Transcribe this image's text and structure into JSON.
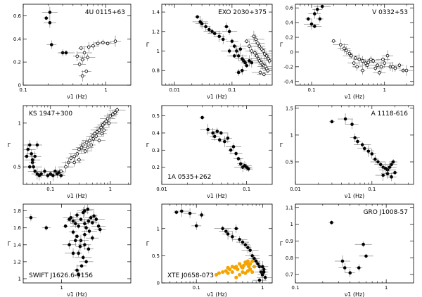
{
  "chart_data": [
    {
      "type": "scatter",
      "title": "4U 0115+63",
      "title_pos": "top-right",
      "xlabel": "ν1 (Hz)",
      "ylabel": "",
      "xscale": "log",
      "xlim": [
        0.1,
        2.0
      ],
      "ylim": [
        0,
        0.7
      ],
      "xticks": [
        0.1,
        1
      ],
      "xtick_labels": [
        "0.1",
        "1"
      ],
      "yticks": [
        0,
        0.2,
        0.4,
        0.6
      ],
      "ytick_labels": [
        "0",
        "0.2",
        "0.4",
        "0.6"
      ],
      "series": [
        {
          "name": "filled",
          "color": "#000000",
          "fill": "filled",
          "x": [
            0.19,
            0.21,
            0.21,
            0.22,
            0.3,
            0.33
          ],
          "y": [
            0.58,
            0.63,
            0.54,
            0.35,
            0.28,
            0.28
          ]
        },
        {
          "name": "open",
          "color": "#000000",
          "fill": "open",
          "x": [
            0.5,
            0.55,
            0.62,
            0.7,
            0.8,
            0.92,
            1.05,
            1.3,
            0.45,
            0.52,
            0.6,
            0.48,
            0.58,
            0.52
          ],
          "y": [
            0.32,
            0.28,
            0.33,
            0.34,
            0.36,
            0.37,
            0.36,
            0.38,
            0.25,
            0.22,
            0.24,
            0.18,
            0.12,
            0.08
          ]
        }
      ]
    },
    {
      "type": "scatter",
      "title": "EXO 2030+375",
      "title_pos": "top-right",
      "xlabel": "ν1 (Hz)",
      "ylabel": "Γ",
      "xscale": "log",
      "xlim": [
        0.006,
        0.5
      ],
      "ylim": [
        0.65,
        1.48
      ],
      "xticks": [
        0.01,
        0.1
      ],
      "xtick_labels": [
        "0.01",
        "0.1"
      ],
      "yticks": [
        0.8,
        1.0,
        1.2,
        1.4
      ],
      "ytick_labels": [
        "0.8",
        "1",
        "1.2",
        "1.4"
      ],
      "series": [
        {
          "name": "filled",
          "color": "#000000",
          "fill": "filled",
          "x": [
            0.025,
            0.028,
            0.03,
            0.035,
            0.04,
            0.045,
            0.05,
            0.06,
            0.07,
            0.08,
            0.09,
            0.1,
            0.11,
            0.12,
            0.13,
            0.15,
            0.16,
            0.17,
            0.18,
            0.2,
            0.22,
            0.15,
            0.13,
            0.09,
            0.11,
            0.14
          ],
          "y": [
            1.35,
            1.3,
            1.28,
            1.25,
            1.22,
            1.2,
            1.18,
            1.15,
            1.12,
            1.25,
            1.2,
            1.1,
            1.05,
            1.0,
            0.95,
            0.92,
            0.9,
            0.88,
            0.85,
            0.9,
            0.88,
            0.8,
            0.78,
            1.0,
            0.95,
            1.02
          ]
        },
        {
          "name": "open",
          "color": "#000000",
          "fill": "open",
          "x": [
            0.18,
            0.2,
            0.22,
            0.25,
            0.27,
            0.29,
            0.3,
            0.32,
            0.34,
            0.36,
            0.38,
            0.4,
            0.42,
            0.24,
            0.26,
            0.28,
            0.3,
            0.33,
            0.35,
            0.37,
            0.4,
            0.43,
            0.45,
            0.31,
            0.36
          ],
          "y": [
            1.1,
            1.05,
            1.0,
            0.98,
            0.95,
            0.92,
            0.9,
            0.88,
            0.86,
            0.85,
            0.84,
            0.82,
            0.8,
            1.15,
            1.12,
            1.08,
            1.05,
            1.02,
            1.0,
            0.97,
            0.95,
            0.92,
            0.9,
            0.78,
            0.76
          ]
        }
      ]
    },
    {
      "type": "scatter",
      "title": "V 0332+53",
      "title_pos": "top-right",
      "xlabel": "ν1 (Hz)",
      "ylabel": "Γ",
      "xscale": "log",
      "xlim": [
        0.06,
        2.5
      ],
      "ylim": [
        -0.45,
        0.65
      ],
      "xticks": [
        0.1,
        1
      ],
      "xtick_labels": [
        "0.1",
        "1"
      ],
      "yticks": [
        -0.4,
        -0.2,
        0,
        0.2,
        0.4,
        0.6
      ],
      "ytick_labels": [
        "-0.4",
        "-0.2",
        "0",
        "0.2",
        "0.4",
        "0.6"
      ],
      "series": [
        {
          "name": "filled",
          "color": "#000000",
          "fill": "filled",
          "x": [
            0.09,
            0.1,
            0.11,
            0.12,
            0.13,
            0.14,
            0.11
          ],
          "y": [
            0.45,
            0.38,
            0.52,
            0.58,
            0.45,
            0.62,
            0.35
          ]
        },
        {
          "name": "open",
          "color": "#000000",
          "fill": "open",
          "x": [
            0.2,
            0.25,
            0.28,
            0.3,
            0.33,
            0.35,
            0.4,
            0.45,
            0.5,
            0.55,
            0.6,
            0.7,
            0.8,
            0.9,
            1.0,
            1.2,
            1.4,
            1.6,
            1.8,
            2.0,
            0.38,
            0.42,
            0.65,
            0.75,
            0.95,
            1.1,
            1.3,
            0.5,
            0.58,
            0.85
          ],
          "y": [
            0.15,
            0.1,
            0.05,
            0.02,
            -0.02,
            -0.05,
            -0.08,
            -0.1,
            -0.12,
            -0.15,
            -0.14,
            -0.12,
            -0.18,
            -0.2,
            -0.15,
            -0.2,
            -0.22,
            -0.18,
            -0.25,
            -0.25,
            -0.15,
            -0.2,
            -0.1,
            -0.22,
            -0.1,
            -0.05,
            -0.2,
            -0.25,
            -0.18,
            -0.28
          ]
        }
      ]
    },
    {
      "type": "scatter",
      "title": "KS 1947+300",
      "title_pos": "top-left",
      "xlabel": "ν1 (Hz)",
      "ylabel": "Γ",
      "xscale": "log",
      "xlim": [
        0.035,
        2.2
      ],
      "ylim": [
        0.3,
        1.2
      ],
      "xticks": [
        0.1,
        1
      ],
      "xtick_labels": [
        "0.1",
        "1"
      ],
      "yticks": [
        0.5,
        1
      ],
      "ytick_labels": [
        "0.5",
        "1"
      ],
      "series": [
        {
          "name": "filled",
          "color": "#000000",
          "fill": "filled",
          "x": [
            0.04,
            0.042,
            0.045,
            0.048,
            0.05,
            0.052,
            0.055,
            0.06,
            0.065,
            0.07,
            0.08,
            0.09,
            0.1,
            0.11,
            0.12,
            0.13,
            0.14,
            0.15,
            0.045,
            0.05,
            0.055,
            0.06
          ],
          "y": [
            0.62,
            0.7,
            0.75,
            0.65,
            0.55,
            0.5,
            0.45,
            0.42,
            0.4,
            0.42,
            0.45,
            0.4,
            0.42,
            0.4,
            0.45,
            0.42,
            0.44,
            0.4,
            0.5,
            0.58,
            0.62,
            0.75
          ]
        },
        {
          "name": "open",
          "color": "#000000",
          "fill": "open",
          "x": [
            0.15,
            0.18,
            0.2,
            0.22,
            0.25,
            0.28,
            0.3,
            0.33,
            0.35,
            0.4,
            0.45,
            0.5,
            0.55,
            0.6,
            0.65,
            0.7,
            0.75,
            0.8,
            0.85,
            0.9,
            1.0,
            1.1,
            1.2,
            1.3,
            0.38,
            0.42,
            0.48,
            0.52,
            0.58,
            0.65,
            0.72,
            0.78,
            0.95,
            0.25,
            0.3
          ],
          "y": [
            0.45,
            0.5,
            0.55,
            0.6,
            0.62,
            0.65,
            0.7,
            0.72,
            0.75,
            0.78,
            0.8,
            0.85,
            0.88,
            0.9,
            0.92,
            0.95,
            0.98,
            1.0,
            1.02,
            1.05,
            1.08,
            1.1,
            1.12,
            1.15,
            0.68,
            0.72,
            0.75,
            0.82,
            0.85,
            0.8,
            0.88,
            0.92,
            1.0,
            0.55,
            0.58
          ]
        }
      ]
    },
    {
      "type": "scatter",
      "title": "1A 0535+262",
      "title_pos": "bottom-left",
      "xlabel": "ν1 (Hz)",
      "ylabel": "Γ",
      "xscale": "log",
      "xlim": [
        0.01,
        0.2
      ],
      "ylim": [
        0.1,
        0.56
      ],
      "xticks": [
        0.01,
        0.1
      ],
      "xtick_labels": [
        "0.01",
        "0.1"
      ],
      "yticks": [
        0.2,
        0.3,
        0.4,
        0.5
      ],
      "ytick_labels": [
        "0.2",
        "0.3",
        "0.4",
        "0.5"
      ],
      "series": [
        {
          "name": "filled",
          "color": "#000000",
          "fill": "filled",
          "x": [
            0.03,
            0.035,
            0.04,
            0.042,
            0.045,
            0.048,
            0.05,
            0.055,
            0.06,
            0.065,
            0.07,
            0.075,
            0.08,
            0.085,
            0.09,
            0.095,
            0.1,
            0.105
          ],
          "y": [
            0.49,
            0.42,
            0.4,
            0.38,
            0.41,
            0.36,
            0.4,
            0.35,
            0.37,
            0.3,
            0.32,
            0.28,
            0.25,
            0.22,
            0.2,
            0.21,
            0.2,
            0.19
          ]
        }
      ]
    },
    {
      "type": "scatter",
      "title": "A 1118-616",
      "title_pos": "top-right",
      "xlabel": "ν1 (Hz)",
      "ylabel": "Γ",
      "xscale": "log",
      "xlim": [
        0.01,
        0.35
      ],
      "ylim": [
        0.08,
        1.55
      ],
      "xticks": [
        0.01,
        0.1
      ],
      "xtick_labels": [
        "0.01",
        "0.1"
      ],
      "yticks": [
        0.5,
        1,
        1.5
      ],
      "ytick_labels": [
        "0.5",
        "1",
        "1.5"
      ],
      "series": [
        {
          "name": "filled",
          "color": "#000000",
          "fill": "filled",
          "x": [
            0.03,
            0.045,
            0.055,
            0.06,
            0.065,
            0.075,
            0.08,
            0.09,
            0.1,
            0.11,
            0.12,
            0.13,
            0.14,
            0.15,
            0.16,
            0.17,
            0.18,
            0.19,
            0.2,
            0.14,
            0.16,
            0.18
          ],
          "y": [
            1.25,
            1.3,
            1.2,
            0.95,
            0.88,
            0.82,
            0.75,
            0.7,
            0.65,
            0.55,
            0.5,
            0.45,
            0.4,
            0.38,
            0.35,
            0.4,
            0.45,
            0.5,
            0.3,
            0.25,
            0.28,
            0.22
          ]
        }
      ]
    },
    {
      "type": "scatter",
      "title": "SWIFT J1626.6-5156",
      "title_pos": "bottom-left",
      "xlabel": "ν1 (Hz)",
      "ylabel": "Γ",
      "xscale": "linear",
      "xlim": [
        0.5,
        1.9
      ],
      "ylim": [
        0.95,
        1.88
      ],
      "xticks": [
        1
      ],
      "xtick_labels": [
        "1"
      ],
      "yticks": [
        1,
        1.2,
        1.4,
        1.6,
        1.8
      ],
      "ytick_labels": [
        "1",
        "1.2",
        "1.4",
        "1.6",
        "1.8"
      ],
      "series": [
        {
          "name": "filled",
          "color": "#000000",
          "fill": "filled",
          "x": [
            1.1,
            1.12,
            1.15,
            1.18,
            1.2,
            1.22,
            1.25,
            1.28,
            1.3,
            1.32,
            1.35,
            1.38,
            1.4,
            1.42,
            1.45,
            1.48,
            1.5,
            1.15,
            1.2,
            1.25,
            1.3,
            1.35,
            1.22,
            1.28,
            1.32,
            1.18,
            1.24,
            1.3,
            1.36,
            1.4,
            1.26,
            1.2,
            1.15,
            1.1,
            0.6,
            0.8,
            1.05,
            1.3,
            1.34,
            1.22
          ],
          "y": [
            1.7,
            1.72,
            1.68,
            1.65,
            1.75,
            1.62,
            1.7,
            1.78,
            1.65,
            1.6,
            1.68,
            1.72,
            1.66,
            1.74,
            1.7,
            1.62,
            1.58,
            1.55,
            1.5,
            1.45,
            1.4,
            1.35,
            1.3,
            1.25,
            1.2,
            1.45,
            1.38,
            1.52,
            1.56,
            1.48,
            1.15,
            1.1,
            1.3,
            1.4,
            1.72,
            1.6,
            1.62,
            1.8,
            1.82,
            1.05
          ]
        }
      ]
    },
    {
      "type": "scatter",
      "title": "XTE J0658-073",
      "title_pos": "bottom-left",
      "xlabel": "ν1 (Hz)",
      "ylabel": "Γ",
      "xscale": "log",
      "xlim": [
        0.03,
        1.4
      ],
      "ylim": [
        0,
        1.45
      ],
      "xticks": [
        0.1,
        1
      ],
      "xtick_labels": [
        "0.1",
        "1"
      ],
      "yticks": [
        0,
        0.5,
        1
      ],
      "ytick_labels": [
        "0",
        "0.5",
        "1"
      ],
      "series": [
        {
          "name": "filled",
          "color": "#000000",
          "fill": "filled",
          "x": [
            0.05,
            0.06,
            0.08,
            0.1,
            0.12,
            0.25,
            0.28,
            0.3,
            0.35,
            0.4,
            0.45,
            0.5,
            0.55,
            0.6,
            0.65,
            0.7,
            0.75,
            0.8,
            0.85,
            0.9,
            0.95,
            1.0,
            1.05,
            1.1,
            0.9,
            1.0,
            1.05
          ],
          "y": [
            1.3,
            1.32,
            1.28,
            1.05,
            1.25,
            1.0,
            0.95,
            0.9,
            0.85,
            1.0,
            0.8,
            0.75,
            0.7,
            0.65,
            0.6,
            0.5,
            0.45,
            0.4,
            0.35,
            0.3,
            0.2,
            0.15,
            0.25,
            0.1,
            0.05,
            0.3,
            0.2
          ]
        },
        {
          "name": "orange",
          "color": "#f5a300",
          "fill": "filled",
          "x": [
            0.2,
            0.22,
            0.25,
            0.28,
            0.3,
            0.32,
            0.35,
            0.38,
            0.4,
            0.42,
            0.45,
            0.48,
            0.5,
            0.52,
            0.55,
            0.58,
            0.6,
            0.62,
            0.65,
            0.7,
            0.75,
            0.4,
            0.45,
            0.5,
            0.55,
            0.6,
            0.35,
            0.3,
            0.65,
            0.7
          ],
          "y": [
            0.15,
            0.18,
            0.2,
            0.22,
            0.18,
            0.25,
            0.2,
            0.28,
            0.3,
            0.25,
            0.35,
            0.3,
            0.28,
            0.32,
            0.38,
            0.35,
            0.4,
            0.3,
            0.25,
            0.2,
            0.3,
            0.1,
            0.15,
            0.2,
            0.18,
            0.22,
            0.3,
            0.28,
            0.35,
            0.4
          ]
        }
      ]
    },
    {
      "type": "scatter",
      "title": "GRO J1008-57",
      "title_pos": "top-right",
      "xlabel": "ν1 (Hz)",
      "ylabel": "Γ",
      "xscale": "log",
      "xlim": [
        0.1,
        2.0
      ],
      "ylim": [
        0.65,
        1.12
      ],
      "xticks": [
        0.1,
        1
      ],
      "xtick_labels": [
        "0.1",
        "1"
      ],
      "yticks": [
        0.7,
        0.8,
        0.9,
        1.0,
        1.1
      ],
      "ytick_labels": [
        "0.7",
        "0.8",
        "0.9",
        "1",
        "1.1"
      ],
      "series": [
        {
          "name": "filled",
          "color": "#000000",
          "fill": "filled",
          "x": [
            0.25,
            0.33,
            0.35,
            0.4,
            0.5,
            0.56,
            0.6
          ],
          "y": [
            1.01,
            0.78,
            0.74,
            0.71,
            0.74,
            0.88,
            0.81
          ]
        }
      ]
    }
  ]
}
